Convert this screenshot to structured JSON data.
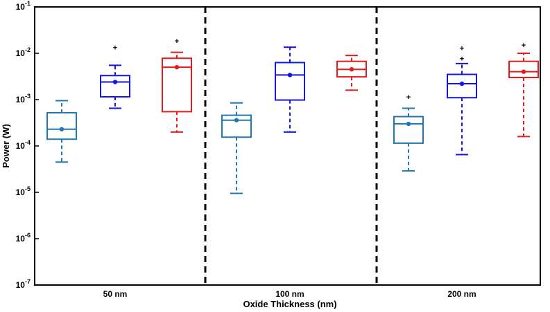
{
  "chart_data": {
    "type": "boxplot",
    "title": "",
    "xlabel": "Oxide Thickness (nm)",
    "ylabel": "Power (W)",
    "yscale": "log",
    "ylim": [
      1e-07,
      0.1
    ],
    "y_ticks": [
      {
        "value": 1e-07,
        "base": "10",
        "exp": "-7"
      },
      {
        "value": 1e-06,
        "base": "10",
        "exp": "-6"
      },
      {
        "value": 1e-05,
        "base": "10",
        "exp": "-5"
      },
      {
        "value": 0.0001,
        "base": "10",
        "exp": "-4"
      },
      {
        "value": 0.001,
        "base": "10",
        "exp": "-3"
      },
      {
        "value": 0.01,
        "base": "10",
        "exp": "-2"
      },
      {
        "value": 0.1,
        "base": "10",
        "exp": "-1"
      }
    ],
    "groups": [
      "50 nm",
      "100 nm",
      "200 nm"
    ],
    "series_colors": [
      "#1f77b4",
      "#1212e6",
      "#e61a1a"
    ],
    "boxes": [
      {
        "group": 0,
        "series": 0,
        "whisker_low": 4.5e-05,
        "q1": 0.00014,
        "median": 0.00023,
        "mean": 0.00023,
        "q3": 0.00052,
        "whisker_high": 0.00095,
        "outliers": []
      },
      {
        "group": 0,
        "series": 1,
        "whisker_low": 0.00065,
        "q1": 0.00115,
        "median": 0.0024,
        "mean": 0.0024,
        "q3": 0.0033,
        "whisker_high": 0.0055,
        "outliers": [
          0.013
        ]
      },
      {
        "group": 0,
        "series": 2,
        "whisker_low": 0.0002,
        "q1": 0.00055,
        "median": 0.005,
        "mean": 0.005,
        "q3": 0.0078,
        "whisker_high": 0.0105,
        "outliers": [
          0.018
        ]
      },
      {
        "group": 1,
        "series": 0,
        "whisker_low": 9.5e-06,
        "q1": 0.000155,
        "median": 0.00036,
        "mean": 0.00036,
        "q3": 0.00046,
        "whisker_high": 0.00085,
        "outliers": []
      },
      {
        "group": 1,
        "series": 1,
        "whisker_low": 0.0002,
        "q1": 0.00098,
        "median": 0.0034,
        "mean": 0.0034,
        "q3": 0.0063,
        "whisker_high": 0.0135,
        "outliers": []
      },
      {
        "group": 1,
        "series": 2,
        "whisker_low": 0.0016,
        "q1": 0.0031,
        "median": 0.0045,
        "mean": 0.0045,
        "q3": 0.0067,
        "whisker_high": 0.009,
        "outliers": []
      },
      {
        "group": 2,
        "series": 0,
        "whisker_low": 2.9e-05,
        "q1": 0.000115,
        "median": 0.0003,
        "mean": 0.0003,
        "q3": 0.00043,
        "whisker_high": 0.00065,
        "outliers": [
          0.0011
        ]
      },
      {
        "group": 2,
        "series": 1,
        "whisker_low": 6.5e-05,
        "q1": 0.0011,
        "median": 0.0022,
        "mean": 0.0022,
        "q3": 0.0035,
        "whisker_high": 0.006,
        "outliers": [
          0.0075,
          0.0125
        ]
      },
      {
        "group": 2,
        "series": 2,
        "whisker_low": 0.00016,
        "q1": 0.003,
        "median": 0.004,
        "mean": 0.004,
        "q3": 0.0067,
        "whisker_high": 0.01,
        "outliers": [
          0.0145
        ]
      }
    ]
  }
}
